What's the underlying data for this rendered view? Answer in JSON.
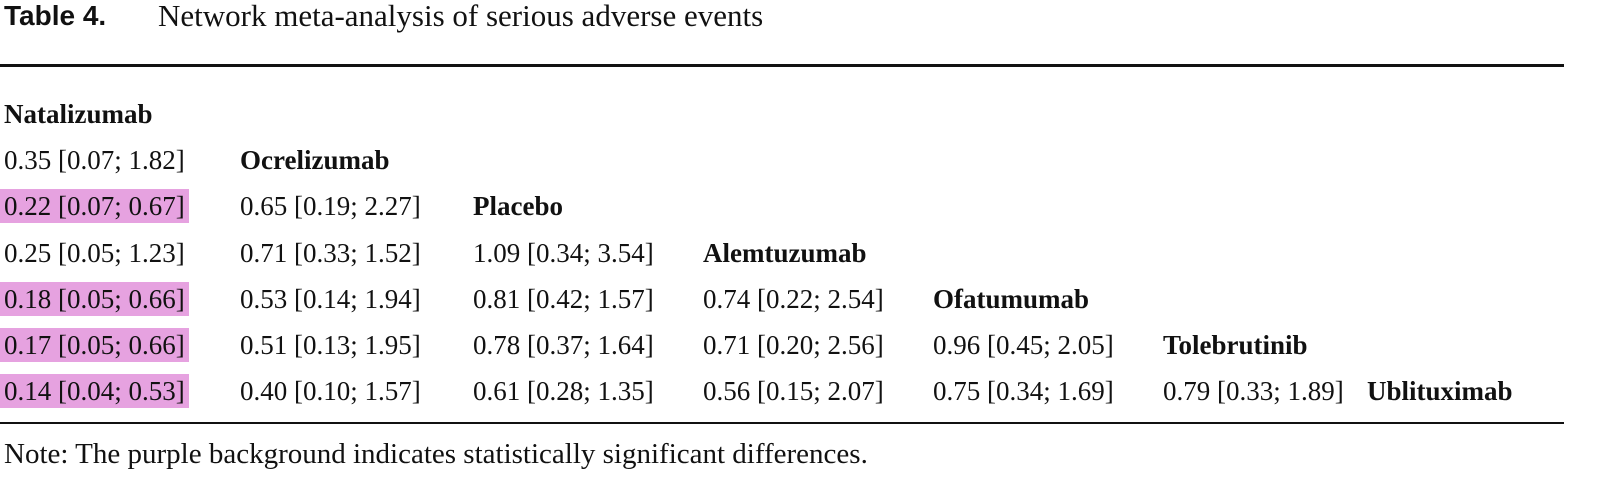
{
  "header": {
    "label": "Table 4.",
    "title": "Network meta-analysis of serious adverse events"
  },
  "table": {
    "rows": [
      [
        "Natalizumab"
      ],
      [
        "0.35 [0.07; 1.82]",
        "Ocrelizumab"
      ],
      [
        "0.22 [0.07; 0.67]",
        "0.65 [0.19; 2.27]",
        "Placebo"
      ],
      [
        "0.25 [0.05; 1.23]",
        "0.71 [0.33; 1.52]",
        "1.09 [0.34; 3.54]",
        "Alemtuzumab"
      ],
      [
        "0.18 [0.05; 0.66]",
        "0.53 [0.14; 1.94]",
        "0.81 [0.42; 1.57]",
        "0.74 [0.22; 2.54]",
        "Ofatumumab"
      ],
      [
        "0.17 [0.05; 0.66]",
        "0.51 [0.13; 1.95]",
        "0.78 [0.37; 1.64]",
        "0.71 [0.20; 2.56]",
        "0.96 [0.45; 2.05]",
        "Tolebrutinib"
      ],
      [
        "0.14 [0.04; 0.53]",
        "0.40 [0.10; 1.57]",
        "0.61 [0.28; 1.35]",
        "0.56 [0.15; 2.07]",
        "0.75 [0.34; 1.69]",
        "0.79 [0.33; 1.89]",
        "Ublituximab"
      ]
    ],
    "highlight": {
      "color": "#e6a2e0",
      "cells": [
        [
          2,
          0
        ],
        [
          4,
          0
        ],
        [
          5,
          0
        ],
        [
          6,
          0
        ]
      ]
    }
  },
  "note": "Note: The purple background indicates statistically significant differences."
}
